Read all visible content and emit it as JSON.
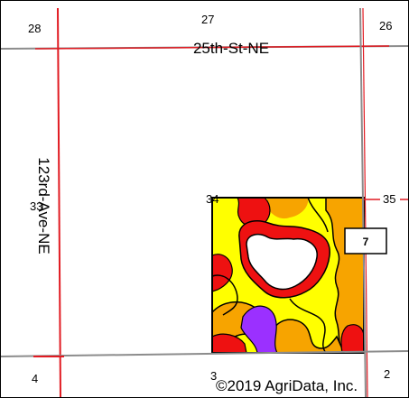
{
  "sections": [
    "28",
    "27",
    "26",
    "33",
    "34",
    "35",
    "4",
    "3",
    "2"
  ],
  "roads": {
    "horizontal": "25th-St-NE",
    "vertical": "123rd-Ave-NE"
  },
  "field_label": "7",
  "copyright": "©2019 AgriData, Inc.",
  "colors": {
    "road_red": "#e11b22",
    "road_gray": "#8c8c8c",
    "soil_yellow": "#ffff00",
    "soil_orange": "#f7a400",
    "soil_red": "#ee1111",
    "soil_purple": "#9b30ff",
    "water_white": "#ffffff",
    "boundary": "#000000"
  }
}
